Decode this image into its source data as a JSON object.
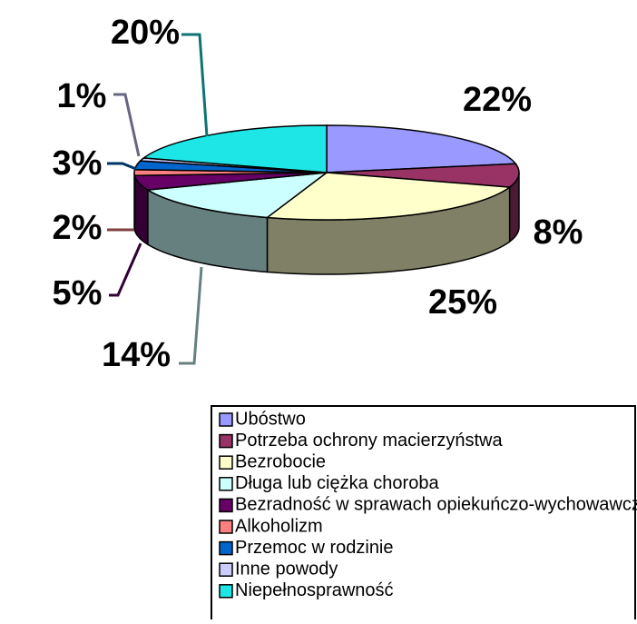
{
  "chart_data": {
    "type": "pie",
    "categories": [
      "Ubóstwo",
      "Potrzeba ochrony macierzyństwa",
      "Bezrobocie",
      "Długa lub ciężka choroba",
      "Bezradność w sprawach opiekuńczo-wychowawczych",
      "Alkoholizm",
      "Przemoc w rodzinie",
      "Inne powody",
      "Niepełnosprawność"
    ],
    "values": [
      22,
      8,
      25,
      14,
      5,
      2,
      3,
      1,
      20
    ],
    "value_labels": [
      "22%",
      "8%",
      "25%",
      "14%",
      "5%",
      "2%",
      "3%",
      "1%",
      "20%"
    ],
    "colors": [
      "#9999ff",
      "#993366",
      "#ffffcc",
      "#ccffff",
      "#660066",
      "#ff8080",
      "#0066cc",
      "#ccccff",
      "#1ee6e6"
    ],
    "legend": "bottom"
  }
}
